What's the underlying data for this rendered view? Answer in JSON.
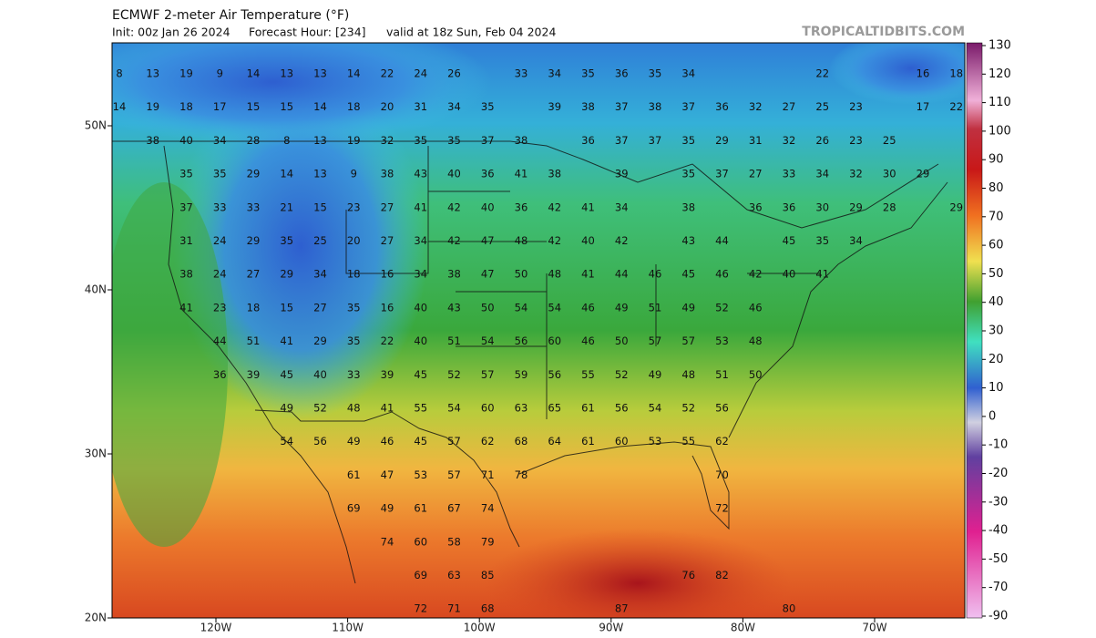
{
  "header": {
    "title": "ECMWF 2-meter Air Temperature (°F)",
    "init": "Init: 00z Jan 26 2024",
    "forecast_hour": "Forecast Hour: [234]",
    "valid": "valid at 18z Sun, Feb 04 2024",
    "source": "TROPICALTIDBITS.COM"
  },
  "map": {
    "latitude_labels": [
      "50N",
      "40N",
      "30N",
      "20N"
    ],
    "longitude_labels": [
      "120W",
      "110W",
      "100W",
      "90W",
      "80W",
      "70W"
    ],
    "temperature_rows": [
      [
        8,
        13,
        19,
        9,
        14,
        13,
        13,
        14,
        22,
        24,
        26,
        null,
        33,
        34,
        35,
        36,
        35,
        34,
        null,
        null,
        null,
        22,
        null,
        null,
        16,
        18
      ],
      [
        14,
        19,
        18,
        17,
        15,
        15,
        14,
        18,
        20,
        31,
        34,
        35,
        null,
        39,
        38,
        37,
        38,
        37,
        36,
        32,
        27,
        25,
        23,
        null,
        17,
        22
      ],
      [
        null,
        38,
        40,
        34,
        28,
        8,
        13,
        19,
        32,
        35,
        35,
        37,
        38,
        null,
        36,
        37,
        37,
        35,
        29,
        31,
        32,
        26,
        23,
        25
      ],
      [
        null,
        null,
        35,
        35,
        29,
        14,
        13,
        9,
        38,
        43,
        40,
        36,
        41,
        38,
        null,
        39,
        null,
        35,
        37,
        27,
        33,
        34,
        32,
        30,
        29
      ],
      [
        null,
        null,
        37,
        33,
        33,
        21,
        15,
        23,
        27,
        41,
        42,
        40,
        36,
        42,
        41,
        34,
        null,
        38,
        null,
        36,
        36,
        30,
        29,
        28,
        null,
        29
      ],
      [
        null,
        null,
        31,
        24,
        29,
        35,
        25,
        20,
        27,
        34,
        42,
        47,
        48,
        42,
        40,
        42,
        null,
        43,
        44,
        null,
        45,
        35,
        34
      ],
      [
        null,
        null,
        38,
        24,
        27,
        29,
        34,
        18,
        16,
        34,
        38,
        47,
        50,
        48,
        41,
        44,
        46,
        45,
        46,
        42,
        40,
        41
      ],
      [
        null,
        null,
        41,
        23,
        18,
        15,
        27,
        35,
        16,
        40,
        43,
        50,
        54,
        54,
        46,
        49,
        51,
        49,
        52,
        46
      ],
      [
        null,
        null,
        null,
        44,
        51,
        41,
        29,
        35,
        22,
        40,
        51,
        54,
        56,
        60,
        46,
        50,
        57,
        57,
        53,
        48
      ],
      [
        null,
        null,
        null,
        36,
        39,
        45,
        40,
        33,
        39,
        45,
        52,
        57,
        59,
        56,
        55,
        52,
        49,
        48,
        51,
        50
      ],
      [
        null,
        null,
        null,
        null,
        null,
        49,
        52,
        48,
        41,
        55,
        54,
        60,
        63,
        65,
        61,
        56,
        54,
        52,
        56
      ],
      [
        null,
        null,
        null,
        null,
        null,
        54,
        56,
        49,
        46,
        45,
        57,
        62,
        68,
        64,
        61,
        60,
        53,
        55,
        62
      ],
      [
        null,
        null,
        null,
        null,
        null,
        null,
        null,
        61,
        47,
        53,
        57,
        71,
        78,
        null,
        null,
        null,
        null,
        null,
        70
      ],
      [
        null,
        null,
        null,
        null,
        null,
        null,
        null,
        69,
        49,
        61,
        67,
        74,
        null,
        null,
        null,
        null,
        null,
        null,
        72
      ],
      [
        null,
        null,
        null,
        null,
        null,
        null,
        null,
        null,
        74,
        60,
        58,
        79
      ],
      [
        null,
        null,
        null,
        null,
        null,
        null,
        null,
        null,
        null,
        69,
        63,
        85,
        null,
        null,
        null,
        null,
        null,
        76,
        82
      ],
      [
        null,
        null,
        null,
        null,
        null,
        null,
        null,
        null,
        null,
        72,
        71,
        68,
        null,
        null,
        null,
        87,
        null,
        null,
        null,
        null,
        80
      ]
    ]
  },
  "colorbar": {
    "ticks": [
      130,
      120,
      110,
      100,
      90,
      80,
      70,
      60,
      50,
      40,
      30,
      20,
      10,
      0,
      -10,
      -20,
      -30,
      -40,
      -50,
      -70,
      -90
    ]
  }
}
